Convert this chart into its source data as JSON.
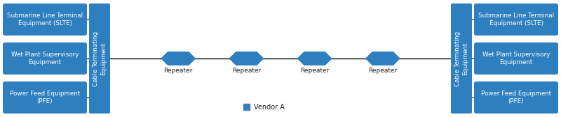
{
  "bg_color": "#ffffff",
  "box_blue": "#2E7FC0",
  "text_color": "#ffffff",
  "dark_text": "#222222",
  "left_boxes": [
    "Submarine Line Terminal\nEquipment (SLTE)",
    "Wet Plant Supervisory\nEquipment",
    "Power Feed Equipment\n(PFE)"
  ],
  "right_boxes": [
    "Submarine Line Terminal\nEquipment (SLTE)",
    "Wet Plant Supervisory\nEquipment",
    "Power Feed Equipment\n(PFE)"
  ],
  "cte_label": "Cable Terminating\nEquipment",
  "repeater_label": "Repeater",
  "legend_label": "Vendor A",
  "n_repeaters": 4,
  "figsize": [
    8.0,
    1.68
  ],
  "dpi": 100
}
